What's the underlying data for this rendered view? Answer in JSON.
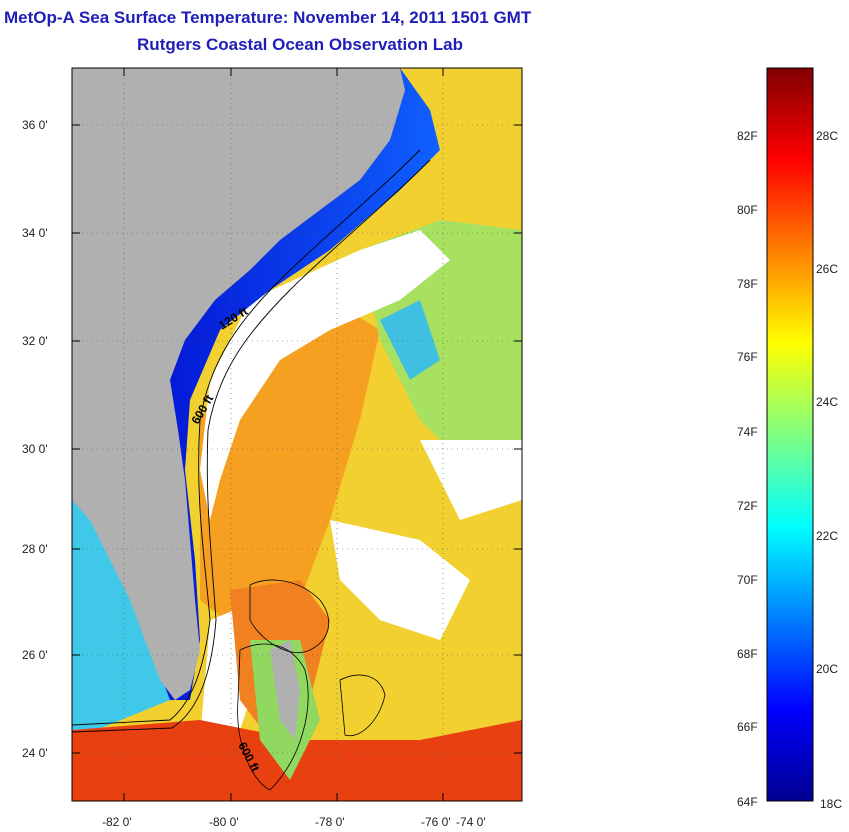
{
  "title": "MetOp-A Sea Surface Temperature:  November 14, 2011 1501 GMT",
  "subtitle": "Rutgers Coastal Ocean Observation Lab",
  "lat_labels": [
    "36 0'",
    "34 0'",
    "32 0'",
    "30 0'",
    "28 0'",
    "26 0'",
    "24 0'"
  ],
  "lon_labels": [
    "-82 0'",
    "-80 0'",
    "-78 0'",
    "-76 0'",
    "-74 0'"
  ],
  "contour_labels": [
    "120 ft",
    "600 ft",
    "600 ft"
  ],
  "colorbar": {
    "fahrenheit_labels": [
      "82F",
      "80F",
      "78F",
      "76F",
      "74F",
      "72F",
      "70F",
      "68F",
      "66F",
      "64F"
    ],
    "celsius_labels": [
      "28C",
      "26C",
      "24C",
      "22C",
      "20C",
      "18C"
    ],
    "min_f": 64,
    "max_f": 84.2,
    "colors": [
      "#00008f",
      "#0000ff",
      "#0080ff",
      "#00ffff",
      "#80ff80",
      "#ffff00",
      "#ff8000",
      "#ff0000",
      "#800000"
    ]
  },
  "colors": {
    "land": "#b0b0b0",
    "cloud": "#ffffff",
    "title": "#1f1fb8"
  }
}
